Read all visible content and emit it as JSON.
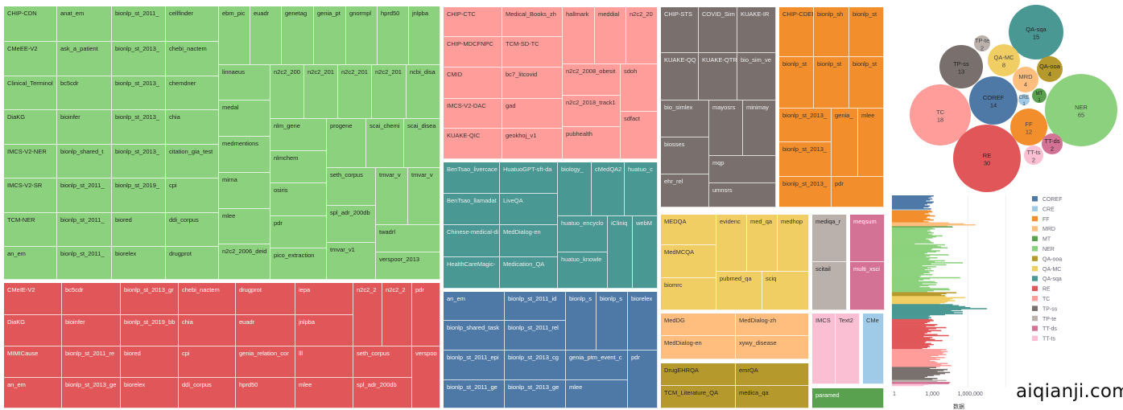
{
  "treemap": [
    {
      "category": "NER",
      "color": "#8cd17d",
      "text": "#222",
      "cells": [
        "CHIP-CDN",
        "CMeEE-V2",
        "Clinical_Terminol",
        "DiaKG",
        "IMCS-V2-NER",
        "IMCS-V2-SR",
        "TCM-NER",
        "an_em",
        "anat_em",
        "ask_a_patient",
        "bc5cdr",
        "bioinfer",
        "bionlp_shared_t",
        "bionlp_st_2011_",
        "bionlp_st_2011_",
        "bionlp_st_2011_",
        "bionlp_st_2011_",
        "bionlp_st_2013_",
        "bionlp_st_2013_",
        "bionlp_st_2013_",
        "bionlp_st_2013_",
        "bionlp_st_2019_",
        "biored",
        "biorelex",
        "cellfinder",
        "chebi_nactem",
        "chemdner",
        "chia",
        "citation_gia_test",
        "cpi",
        "ddi_corpus",
        "drugprot",
        "ebm_pic",
        "euadr",
        "genetag",
        "genia_pt",
        "gnormpl",
        "hprd50",
        "jnlpba",
        "linnaeus",
        "medal",
        "medmentions",
        "mirna",
        "mlee",
        "n2c2_2006_deid",
        "n2c2_200",
        "n2c2_201",
        "n2c2_201",
        "n2c2_201",
        "ncbi_disa",
        "nlm_gene",
        "nlmchem",
        "osiris",
        "pdr",
        "pico_extraction",
        "progene",
        "scai_chemi",
        "scai_disea",
        "seth_corpus",
        "spl_adr_200db",
        "tmvar_v1",
        "tmvar_v",
        "tmvar_v",
        "twadrl",
        "verspoor_2013"
      ]
    },
    {
      "category": "RE",
      "color": "#e15759",
      "text": "#fff",
      "cells": [
        "CMeIE-V2",
        "DiaKG",
        "MIMICause",
        "an_em",
        "bc5cdr",
        "bioinfer",
        "bionlp_st_2011_re",
        "bionlp_st_2013_ge",
        "bionlp_st_2013_gr",
        "bionlp_st_2019_bb",
        "biored",
        "biorelex",
        "chebi_nactem",
        "chia",
        "cpi",
        "ddi_corpus",
        "drugprot",
        "euadr",
        "genia_relation_cor",
        "hprd50",
        "iepa",
        "jnlpba",
        "lll",
        "mlee",
        "n2c2_2",
        "n2c2_2",
        "pdr",
        "seth_corpus",
        "spl_adr_200db",
        "verspoo"
      ]
    },
    {
      "category": "TC",
      "color": "#ff9d9a",
      "text": "#333",
      "cells": [
        "CHIP-CTC",
        "CHIP-MDCFNPC",
        "CMID",
        "IMCS-V2-DAC",
        "KUAKE-QIC",
        "Medical_Books_zh",
        "TCM-SD-TC",
        "bc7_litcovid",
        "gad",
        "geokhoj_v1",
        "hallmark",
        "meddial",
        "n2c2_20",
        "n2c2_2008_obesit",
        "n2c2_2018_track1",
        "pubhealth",
        "sdoh",
        "sdfact"
      ]
    },
    {
      "category": "TP-ss",
      "color": "#79706e",
      "text": "#eee",
      "cells": [
        "CHIP-STS",
        "KUAKE-QQ",
        "COVID_Sim",
        "KUAKE-QTR",
        "KUAKE-IR",
        "bio_sim_ve",
        "bio_simlex",
        "biosses",
        "ehr_rel",
        "mayosrs",
        "minimay",
        "mqp",
        "umnsrs"
      ]
    },
    {
      "category": "FF",
      "color": "#f28e2b",
      "text": "#333",
      "cells": [
        "CHIP-CDEE",
        "bionlp_st",
        "bionlp_sh",
        "bionlp_st",
        "bionlp_st",
        "bionlp_st",
        "bionlp_st_2013_",
        "bionlp_st_2013_",
        "genia_",
        "mlee",
        "bionlp_st_2013_",
        "pdr"
      ]
    },
    {
      "category": "QA-sqa",
      "color": "#499894",
      "text": "#eee",
      "cells": [
        "BenTsao_livercace",
        "BenTsao_llamadat",
        "Chinese-medical-di",
        "HealthCareMagic-",
        "HuatuoGPT-sft-da",
        "LiveQA",
        "MedDialog-en",
        "Medication_QA",
        "biology_",
        "cMedQA2",
        "huatuo_c",
        "huatuo_encyclo",
        "huatuo_knowle",
        "iCliniq",
        "webM"
      ]
    },
    {
      "category": "COREF",
      "color": "#4e79a7",
      "text": "#fff",
      "cells": [
        "an_em",
        "bionlp_shared_task",
        "bionlp_st_2011_epi",
        "bionlp_st_2011_ge",
        "bionlp_st_2011_id",
        "bionlp_st_2011_rel",
        "bionlp_st_2013_cg",
        "bionlp_st_2013_ge",
        "bionlp_s",
        "bionlp_s",
        "biorelex",
        "genia_ptm_event_c",
        "mlee",
        "pdr"
      ]
    },
    {
      "category": "QA-MC",
      "color": "#f1ce63",
      "text": "#333",
      "cells": [
        "MEDQA",
        "MedMCQA",
        "biomrc",
        "evidenc",
        "med_qa",
        "medhop",
        "pubmed_qa",
        "sciq"
      ]
    },
    {
      "category": "MRD",
      "color": "#ffbe7d",
      "text": "#333",
      "cells": [
        "MedDG",
        "MedDialog-en",
        "MedDialog-zh",
        "xywy_disease"
      ]
    },
    {
      "category": "QA-ooa",
      "color": "#b6992d",
      "text": "#222",
      "cells": [
        "DrugEHRQA",
        "TCM_Literature_QA",
        "emrQA",
        "medica_qa"
      ]
    },
    {
      "category": "TP-te",
      "color": "#bab0ac",
      "text": "#222",
      "cells": [
        "mediqa_r",
        "scitail"
      ]
    },
    {
      "category": "TT-ds",
      "color": "#d37295",
      "text": "#fff",
      "cells": [
        "meqsum",
        "multi_xsci"
      ]
    },
    {
      "category": "TT-ts",
      "color": "#fabfd2",
      "text": "#333",
      "cells": [
        "IMCS",
        "Text2"
      ]
    },
    {
      "category": "CRE",
      "color": "#a0cbe8",
      "text": "#333",
      "cells": [
        "CMe"
      ]
    },
    {
      "category": "MT",
      "color": "#59a14f",
      "text": "#fff",
      "cells": [
        "paramed"
      ]
    }
  ],
  "chart_data": [
    {
      "type": "bubble",
      "title": "",
      "labels": [
        "QA-sqa",
        "TP-te",
        "TP-ss",
        "QA-MC",
        "QA-ooa",
        "MRD",
        "MT",
        "CRE",
        "COREF",
        "TC",
        "NER",
        "FF",
        "TT-ds",
        "TT-ts",
        "RE"
      ],
      "values": [
        15,
        2,
        13,
        8,
        4,
        4,
        1,
        1,
        14,
        18,
        65,
        12,
        2,
        2,
        30
      ]
    },
    {
      "type": "bar",
      "orientation": "horizontal",
      "xlabel": "数据",
      "xscale": "log",
      "x_ticks": [
        "1",
        "1,000",
        "1,000,000"
      ],
      "legend_position": "right",
      "note": "values are log10 of dataset size",
      "series": [
        {
          "name": "COREF",
          "values": [
            3.3,
            3.1,
            2.9,
            3.2,
            3.0,
            2.7,
            3.3,
            3.2,
            2.8,
            2.6,
            3.0,
            2.9,
            2.5,
            3.1
          ]
        },
        {
          "name": "CRE",
          "values": [
            2.8
          ]
        },
        {
          "name": "FF",
          "values": [
            3.1,
            3.2,
            2.9,
            2.6,
            3.0,
            3.4,
            2.8,
            2.7,
            3.0,
            3.3,
            2.5,
            2.9
          ]
        },
        {
          "name": "MRD",
          "values": [
            4.5,
            5.7,
            6.6,
            4.4
          ]
        },
        {
          "name": "MT",
          "values": [
            4.8
          ]
        },
        {
          "name": "NER",
          "values": [
            3.2,
            3.4,
            3.0,
            2.8,
            3.1,
            3.3,
            2.9,
            3.2,
            4.0,
            3.5,
            3.2,
            2.7,
            2.9,
            3.0,
            3.1,
            3.3,
            1.8,
            4.2,
            3.6,
            3.9,
            4.4,
            3.2,
            3.1,
            3.8,
            3.5,
            2.8,
            2.6,
            4.5,
            3.0,
            2.7,
            3.6,
            3.0,
            2.9,
            4.2,
            3.4,
            5.6,
            3.1,
            4.3,
            2.4,
            3.5,
            2.8,
            3.1,
            2.6,
            3.3,
            2.9,
            3.0,
            2.5,
            3.2,
            2.3,
            2.2,
            5.4,
            3.0,
            2.5,
            2.1,
            3.4,
            3.6,
            2.4,
            3.5,
            2.9,
            2.2,
            3.0,
            4.5,
            4.6,
            3.3,
            2.8
          ]
        },
        {
          "name": "QA-ooa",
          "values": [
            5.1,
            4.3,
            3.9,
            4.2
          ]
        },
        {
          "name": "QA-MC",
          "values": [
            4.3,
            5.8,
            4.8,
            4.6,
            5.0,
            4.4,
            4.2,
            3.8
          ]
        },
        {
          "name": "QA-sqa",
          "values": [
            4.8,
            5.3,
            5.8,
            6.2,
            7.5,
            5.5,
            4.7,
            5.6,
            4.9,
            5.6,
            4.2,
            3.0,
            2.9,
            3.1,
            2.9
          ]
        },
        {
          "name": "RE",
          "values": [
            3.2,
            3.3,
            3.0,
            2.8,
            2.6,
            3.6,
            3.4,
            2.7,
            4.3,
            3.5,
            2.9,
            3.9,
            3.1,
            2.8,
            2.6,
            3.6,
            4.5,
            2.5,
            3.2,
            3.0,
            3.4,
            4.0,
            2.7,
            2.6,
            3.1,
            3.3,
            2.9,
            3.0,
            2.8,
            2.4
          ]
        },
        {
          "name": "TC",
          "values": [
            4.3,
            3.9,
            4.4,
            4.1,
            4.0,
            4.3,
            3.7,
            3.1,
            4.2,
            3.5,
            3.8,
            3.0,
            3.4,
            3.6,
            4.4,
            3.9,
            4.7,
            3.8
          ]
        },
        {
          "name": "TP-ss",
          "values": [
            3.5,
            3.0,
            4.4,
            4.1,
            3.6,
            4.6,
            4.2,
            3.8,
            3.3,
            2.8,
            2.6,
            3.6,
            3.2
          ]
        },
        {
          "name": "TP-te",
          "values": [
            4.3,
            3.6
          ]
        },
        {
          "name": "TT-ds",
          "values": [
            4.6,
            4.5
          ]
        },
        {
          "name": "TT-ts",
          "values": [
            2.9,
            2.5
          ]
        }
      ],
      "legend": [
        "COREF",
        "CRE",
        "FF",
        "MRD",
        "MT",
        "NER",
        "QA-ooa",
        "QA-MC",
        "QA-sqa",
        "RE",
        "TC",
        "TP-ss",
        "TP-te",
        "TT-ds",
        "TT-ts"
      ]
    }
  ],
  "colors": {
    "COREF": "#4e79a7",
    "CRE": "#a0cbe8",
    "FF": "#f28e2b",
    "MRD": "#ffbe7d",
    "MT": "#59a14f",
    "NER": "#8cd17d",
    "QA-ooa": "#b6992d",
    "QA-MC": "#f1ce63",
    "QA-sqa": "#499894",
    "RE": "#e15759",
    "TC": "#ff9d9a",
    "TP-ss": "#79706e",
    "TP-te": "#bab0ac",
    "TT-ds": "#d37295",
    "TT-ts": "#fabfd2"
  },
  "watermark": "aiqianji.com"
}
